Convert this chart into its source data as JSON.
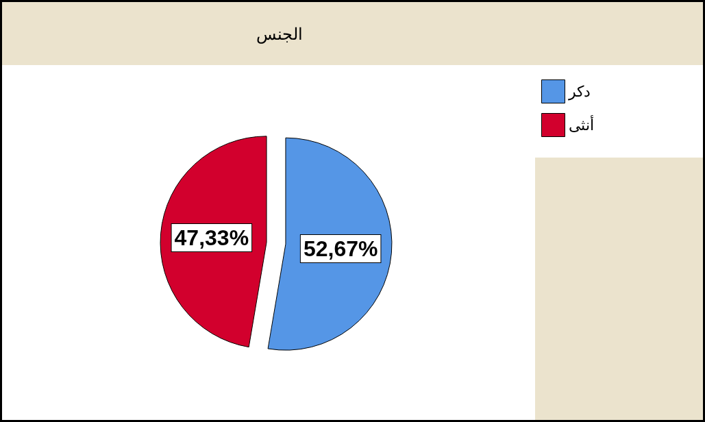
{
  "chart_data": {
    "type": "pie",
    "title": "الجنس",
    "categories": [
      "دكر",
      "أنثى"
    ],
    "values": [
      52.67,
      47.33
    ],
    "colors": [
      "#5596e6",
      "#d2002d"
    ],
    "value_labels": [
      "52,67%",
      "47,33%"
    ],
    "legend": "top right"
  }
}
